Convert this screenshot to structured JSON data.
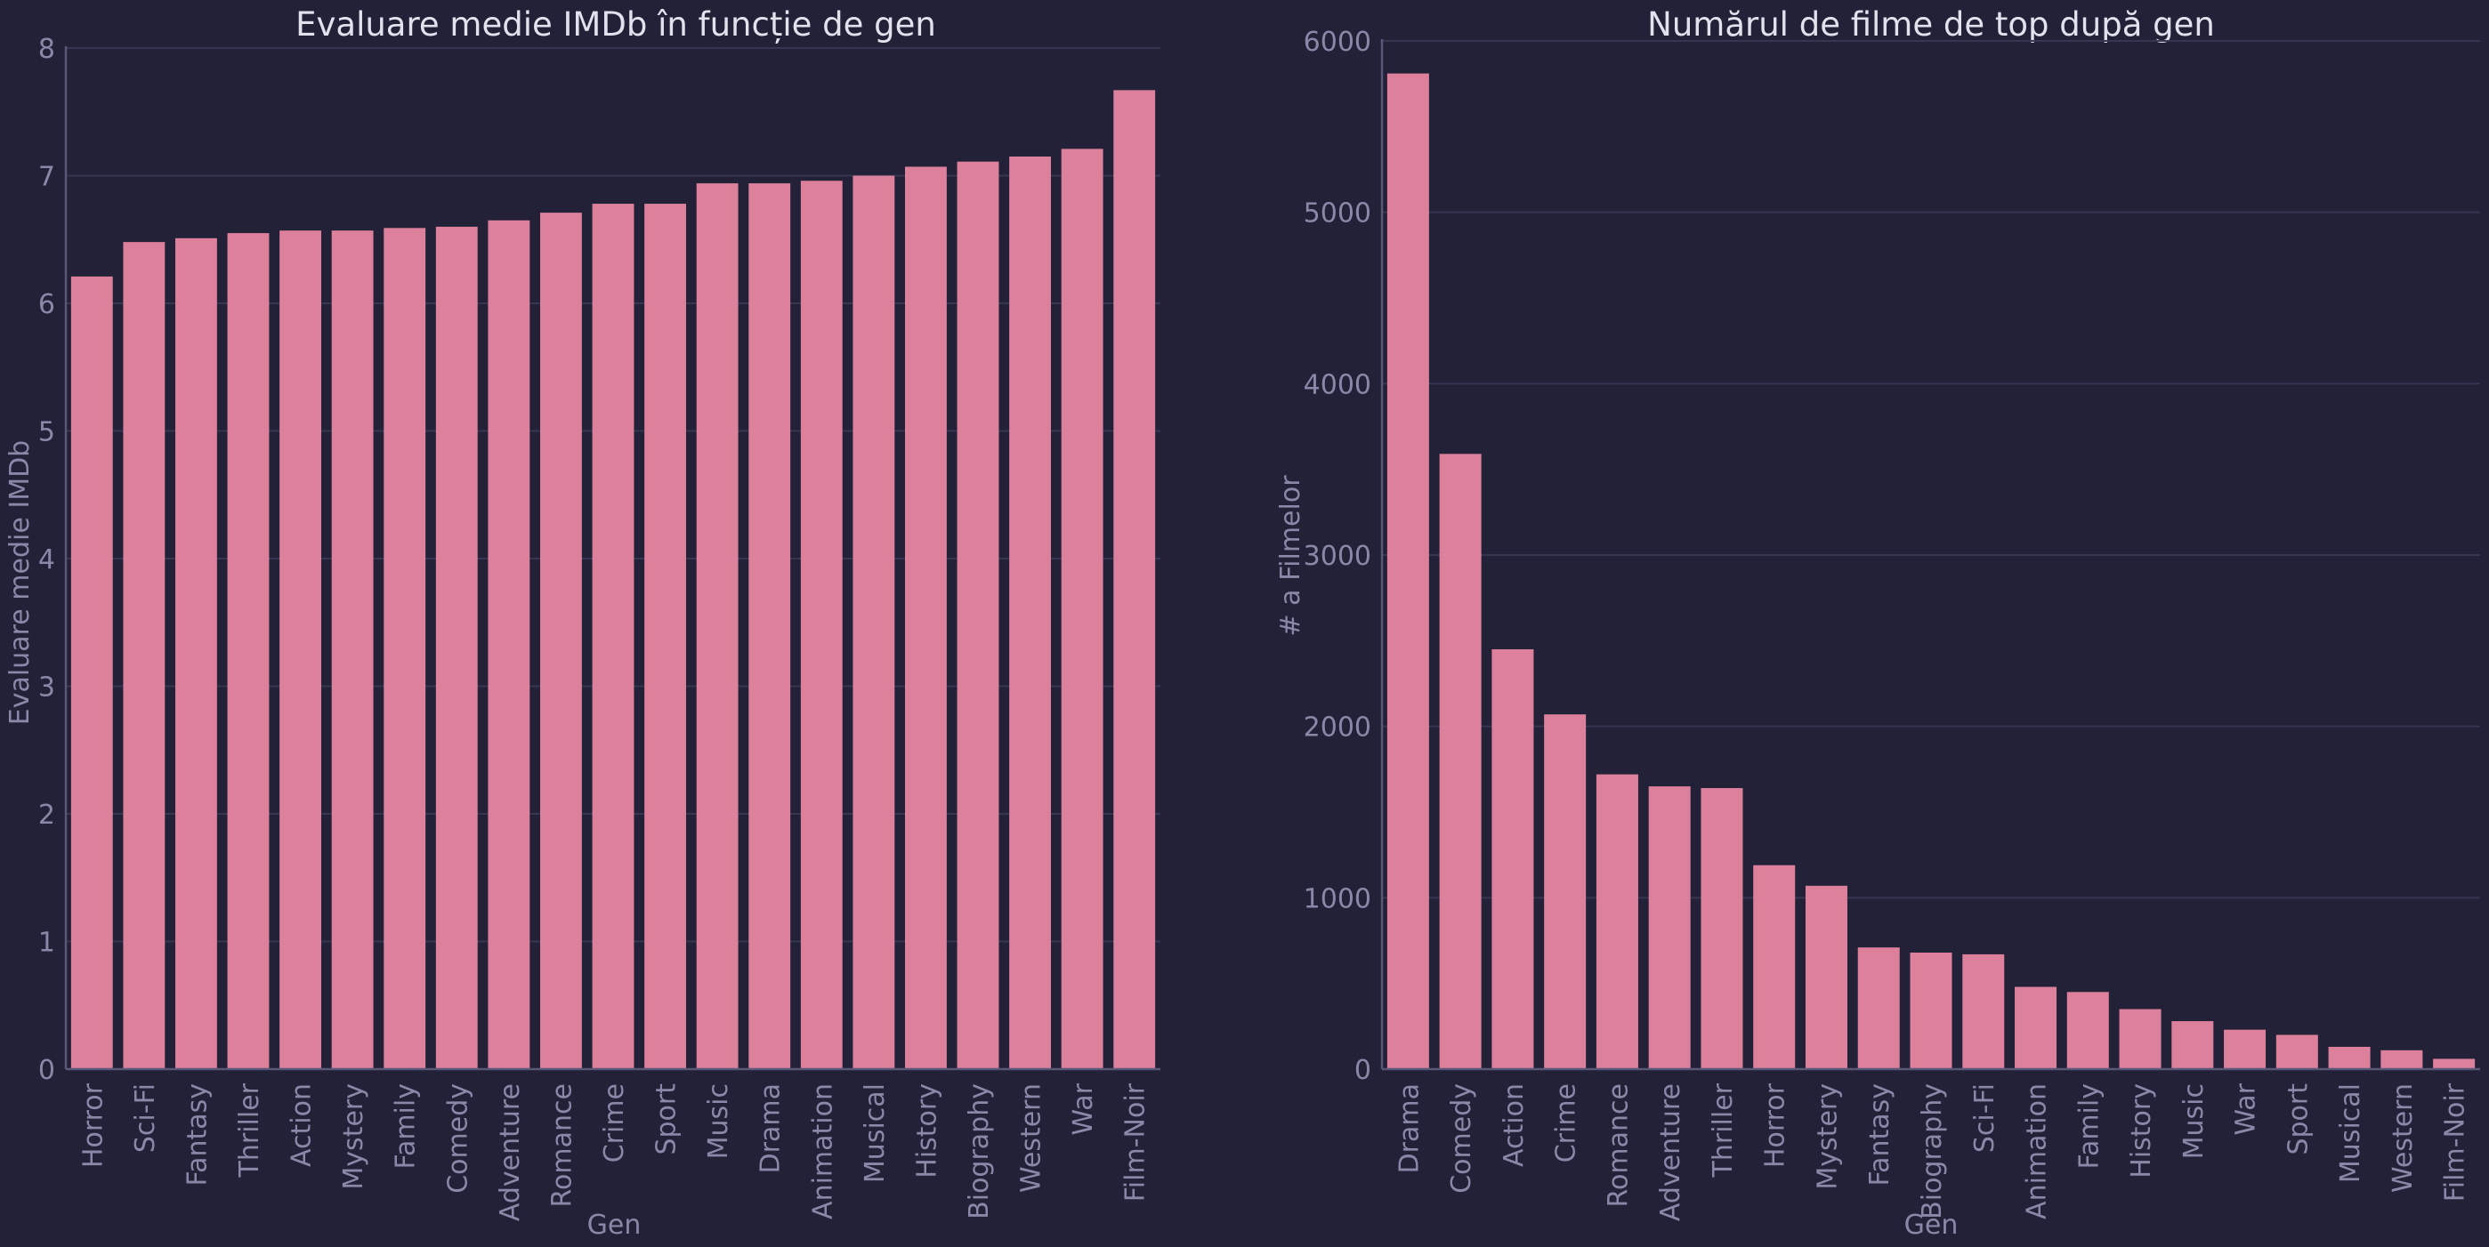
{
  "chart_data": [
    {
      "type": "bar",
      "title": "Evaluare medie IMDb în funcție de gen",
      "xlabel": "Gen",
      "ylabel": "Evaluare medie IMDb",
      "ylim": [
        0,
        8
      ],
      "yticks": [
        0,
        1,
        2,
        3,
        4,
        5,
        6,
        7,
        8
      ],
      "grid": true,
      "categories": [
        "Horror",
        "Sci-Fi",
        "Fantasy",
        "Thriller",
        "Action",
        "Mystery",
        "Family",
        "Comedy",
        "Adventure",
        "Romance",
        "Crime",
        "Sport",
        "Music",
        "Drama",
        "Animation",
        "Musical",
        "History",
        "Biography",
        "Western",
        "War",
        "Film-Noir"
      ],
      "values": [
        6.21,
        6.48,
        6.51,
        6.55,
        6.57,
        6.57,
        6.59,
        6.6,
        6.65,
        6.71,
        6.78,
        6.78,
        6.94,
        6.94,
        6.96,
        7.0,
        7.07,
        7.11,
        7.15,
        7.21,
        7.67
      ]
    },
    {
      "type": "bar",
      "title": "Numărul de filme de top după gen",
      "xlabel": "Gen",
      "ylabel": "# a Filmelor",
      "ylim": [
        0,
        6000
      ],
      "yticks": [
        0,
        1000,
        2000,
        3000,
        4000,
        5000,
        6000
      ],
      "grid": true,
      "categories": [
        "Drama",
        "Comedy",
        "Action",
        "Crime",
        "Romance",
        "Adventure",
        "Thriller",
        "Horror",
        "Mystery",
        "Fantasy",
        "Biography",
        "Sci-Fi",
        "Animation",
        "Family",
        "History",
        "Music",
        "War",
        "Sport",
        "Musical",
        "Western",
        "Film-Noir"
      ],
      "values": [
        5810,
        3590,
        2450,
        2070,
        1720,
        1650,
        1640,
        1190,
        1070,
        710,
        680,
        670,
        480,
        450,
        350,
        280,
        230,
        200,
        130,
        110,
        60
      ]
    }
  ],
  "colors": {
    "background": "#222137",
    "bar": "#dc809c",
    "grid": "#363552",
    "text": "#8a88a8",
    "title": "#e2e2ef"
  }
}
